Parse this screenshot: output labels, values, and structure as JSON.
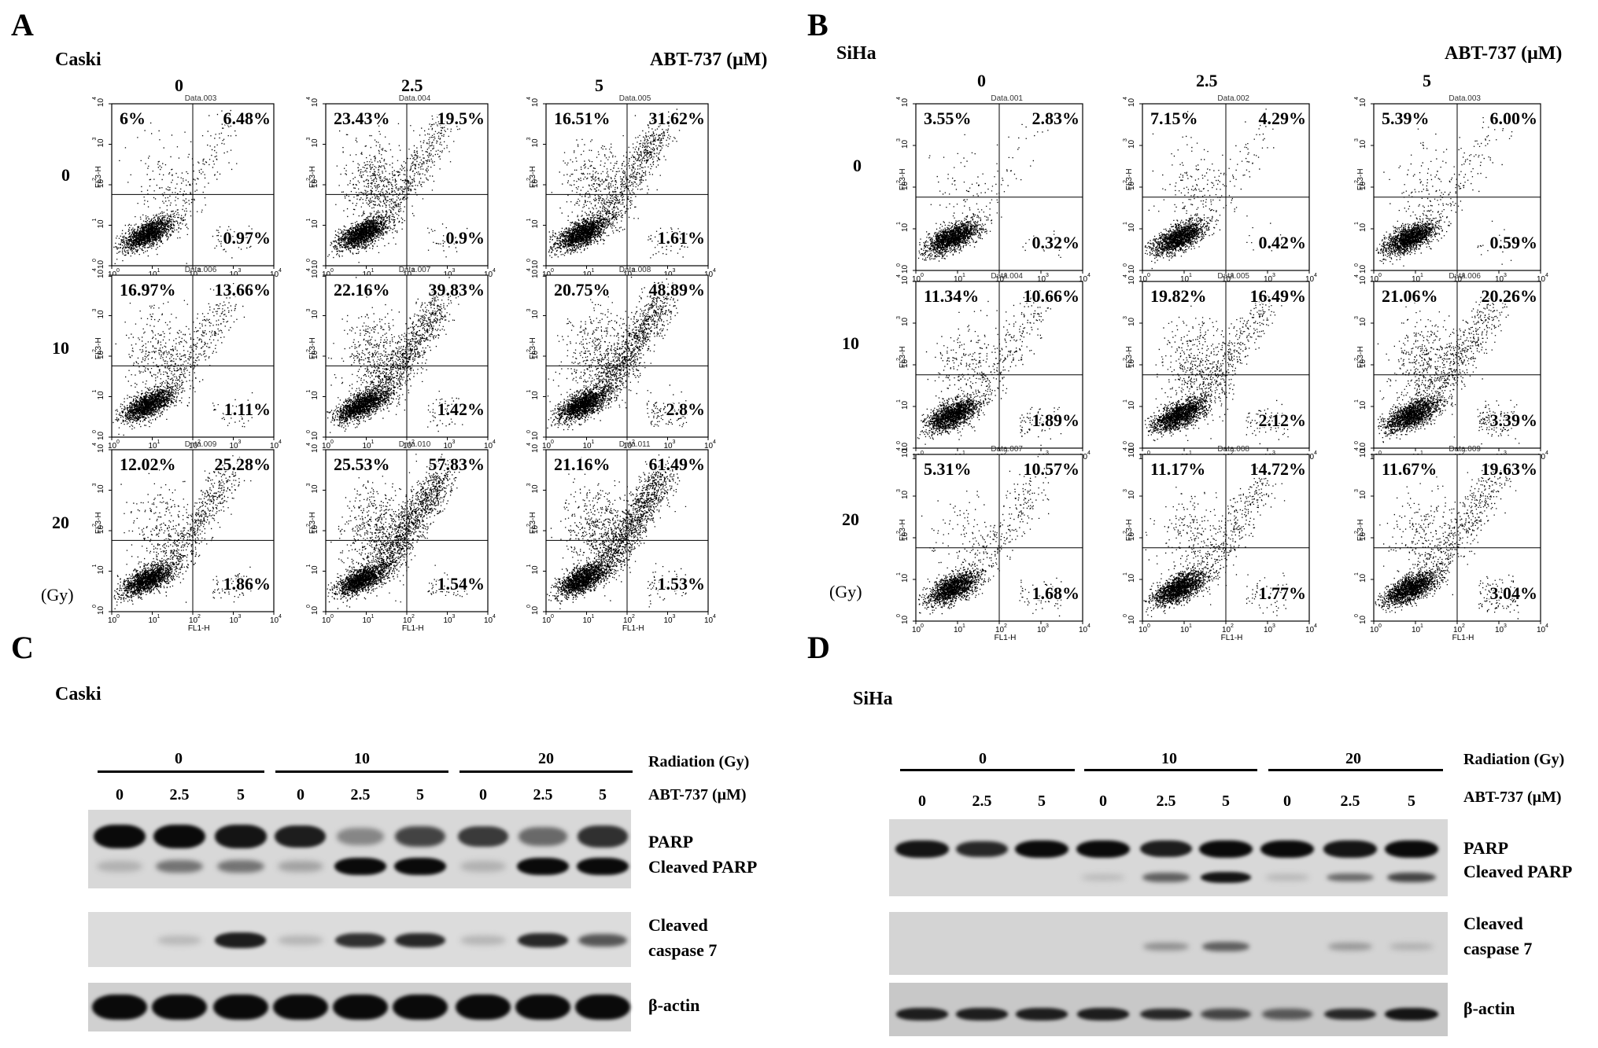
{
  "panelA": {
    "letter": "A",
    "cell_line": "Caski",
    "drug_label": "ABT-737 (μM)",
    "columns": [
      "0",
      "2.5",
      "5"
    ],
    "rows": [
      "0",
      "10",
      "20"
    ],
    "dose_unit": "(Gy)",
    "axis_x": "FL1-H",
    "axis_y": "FL3-H",
    "plots": [
      {
        "dataset": "Data.003",
        "ul": "6%",
        "ur": "6.48%",
        "lr": "0.97%"
      },
      {
        "dataset": "Data.004",
        "ul": "23.43%",
        "ur": "19.5%",
        "lr": "0.9%"
      },
      {
        "dataset": "Data.005",
        "ul": "16.51%",
        "ur": "31.62%",
        "lr": "1.61%"
      },
      {
        "dataset": "Data.006",
        "ul": "16.97%",
        "ur": "13.66%",
        "lr": "1.11%"
      },
      {
        "dataset": "Data.007",
        "ul": "22.16%",
        "ur": "39.83%",
        "lr": "1.42%"
      },
      {
        "dataset": "Data.008",
        "ul": "20.75%",
        "ur": "48.89%",
        "lr": "2.8%"
      },
      {
        "dataset": "Data.009",
        "ul": "12.02%",
        "ur": "25.28%",
        "lr": "1.86%"
      },
      {
        "dataset": "Data.010",
        "ul": "25.53%",
        "ur": "57.83%",
        "lr": "1.54%"
      },
      {
        "dataset": "Data.011",
        "ul": "21.16%",
        "ur": "61.49%",
        "lr": "1.53%"
      }
    ]
  },
  "panelB": {
    "letter": "B",
    "cell_line": "SiHa",
    "drug_label": "ABT-737 (μM)",
    "columns": [
      "0",
      "2.5",
      "5"
    ],
    "rows": [
      "0",
      "10",
      "20"
    ],
    "dose_unit": "(Gy)",
    "axis_x": "FL1-H",
    "axis_y": "FL3-H",
    "plots": [
      {
        "dataset": "Data.001",
        "ul": "3.55%",
        "ur": "2.83%",
        "lr": "0.32%"
      },
      {
        "dataset": "Data.002",
        "ul": "7.15%",
        "ur": "4.29%",
        "lr": "0.42%"
      },
      {
        "dataset": "Data.003",
        "ul": "5.39%",
        "ur": "6.00%",
        "lr": "0.59%"
      },
      {
        "dataset": "Data.004",
        "ul": "11.34%",
        "ur": "10.66%",
        "lr": "1.89%"
      },
      {
        "dataset": "Data.005",
        "ul": "19.82%",
        "ur": "16.49%",
        "lr": "2.12%"
      },
      {
        "dataset": "Data.006",
        "ul": "21.06%",
        "ur": "20.26%",
        "lr": "3.39%"
      },
      {
        "dataset": "Data.007",
        "ul": "5.31%",
        "ur": "10.57%",
        "lr": "1.68%"
      },
      {
        "dataset": "Data.008",
        "ul": "11.17%",
        "ur": "14.72%",
        "lr": "1.77%"
      },
      {
        "dataset": "Data.009",
        "ul": "11.67%",
        "ur": "19.63%",
        "lr": "3.04%"
      }
    ]
  },
  "panelC": {
    "letter": "C",
    "cell_line": "Caski",
    "radiation_groups": [
      "0",
      "10",
      "20"
    ],
    "radiation_label": "Radiation (Gy)",
    "abt_lanes": [
      "0",
      "2.5",
      "5",
      "0",
      "2.5",
      "5",
      "0",
      "2.5",
      "5"
    ],
    "abt_label": "ABT-737 (μM)",
    "labels": {
      "parp": "PARP",
      "cleaved_parp": "Cleaved PARP",
      "cleaved": "Cleaved",
      "caspase7": "caspase 7",
      "actin": "β-actin"
    }
  },
  "panelD": {
    "letter": "D",
    "cell_line": "SiHa",
    "radiation_groups": [
      "0",
      "10",
      "20"
    ],
    "radiation_label": "Radiation (Gy)",
    "abt_lanes": [
      "0",
      "2.5",
      "5",
      "0",
      "2.5",
      "5",
      "0",
      "2.5",
      "5"
    ],
    "abt_label": "ABT-737 (μM)",
    "labels": {
      "parp": "PARP",
      "cleaved_parp": "Cleaved PARP",
      "cleaved": "Cleaved",
      "caspase7": "caspase 7",
      "actin": "β-actin"
    }
  },
  "axis_ticks": {
    "t0": "0",
    "t1": "1",
    "t2": "2",
    "t3": "3",
    "t4": "4"
  }
}
